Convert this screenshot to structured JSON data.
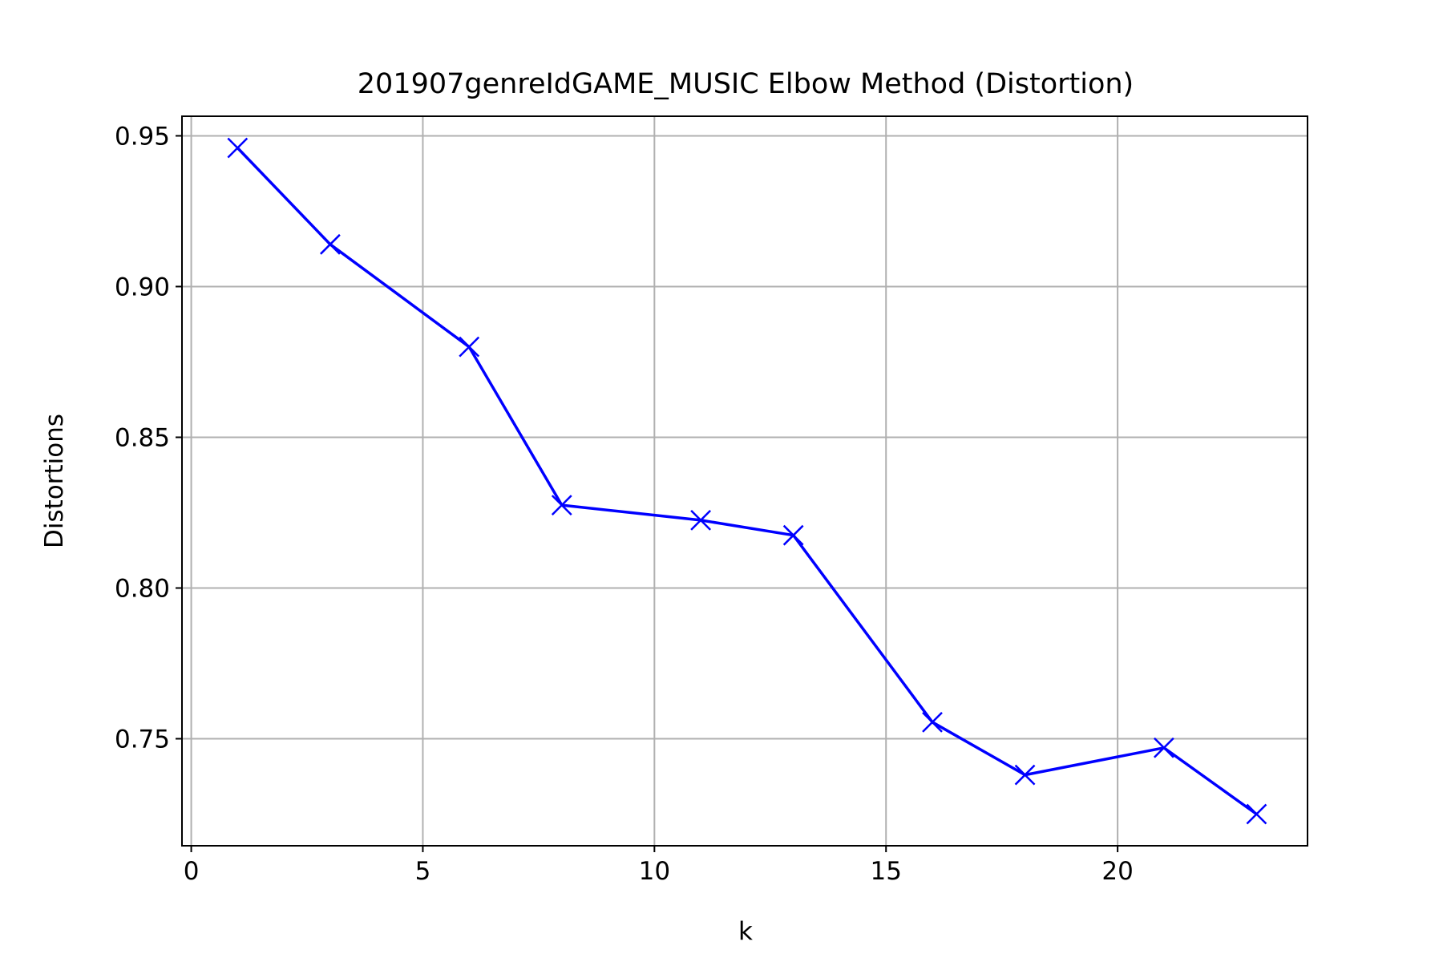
{
  "chart_data": {
    "type": "line",
    "title": "201907genreIdGAME_MUSIC Elbow Method (Distortion)",
    "xlabel": "k",
    "ylabel": "Distortions",
    "xlim": [
      -0.2,
      24.1
    ],
    "ylim": [
      0.7145,
      0.9565
    ],
    "x_ticks": [
      0,
      5,
      10,
      15,
      20
    ],
    "x_tick_labels": [
      "0",
      "5",
      "10",
      "15",
      "20"
    ],
    "y_ticks": [
      0.75,
      0.8,
      0.85,
      0.9,
      0.95
    ],
    "y_tick_labels": [
      "0.75",
      "0.80",
      "0.85",
      "0.90",
      "0.95"
    ],
    "grid": true,
    "series": [
      {
        "x": [
          1,
          3,
          6,
          8,
          11,
          13,
          16,
          18,
          21,
          23
        ],
        "values": [
          0.946,
          0.914,
          0.88,
          0.8275,
          0.8225,
          0.8175,
          0.7555,
          0.738,
          0.747,
          0.725
        ],
        "color": "#0000ff",
        "marker": "x"
      }
    ]
  }
}
